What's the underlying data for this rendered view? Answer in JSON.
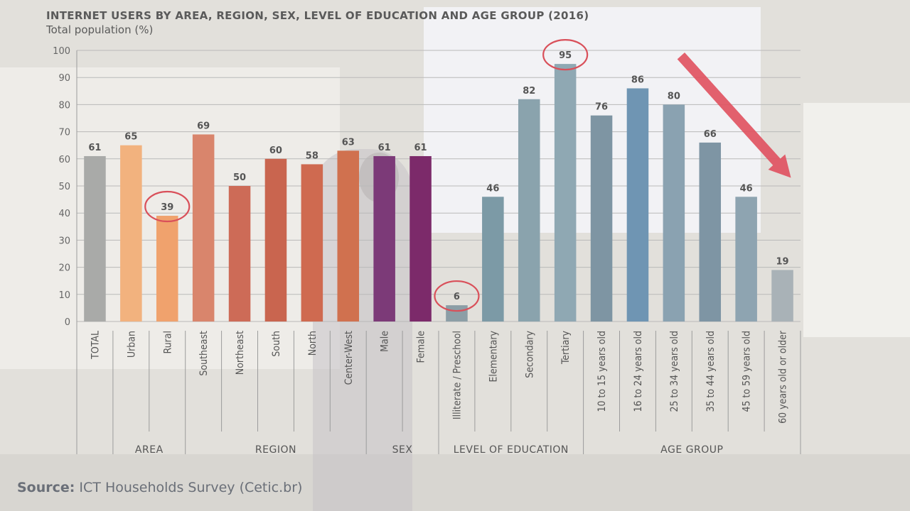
{
  "chart_data": {
    "type": "bar",
    "title": "INTERNET USERS BY AREA, REGION, SEX, LEVEL OF EDUCATION AND AGE GROUP (2016)",
    "subtitle": "Total population (%)",
    "ylim": [
      0,
      100
    ],
    "yticks": [
      0,
      10,
      20,
      30,
      40,
      50,
      60,
      70,
      80,
      90,
      100
    ],
    "grid": true,
    "categories": [
      "TOTAL",
      "Urban",
      "Rural",
      "Southeast",
      "Northeast",
      "South",
      "North",
      "Center-West",
      "Male",
      "Female",
      "Illiterate / Preschool",
      "Elementary",
      "Secondary",
      "Tertiary",
      "10 to 15 years old",
      "16 to 24 years old",
      "25 to 34 years old",
      "35 to 44 years old",
      "45 to 59 years old",
      "60 years old or older"
    ],
    "values": [
      61,
      65,
      39,
      69,
      50,
      60,
      58,
      63,
      61,
      61,
      6,
      46,
      82,
      95,
      76,
      86,
      80,
      66,
      46,
      19
    ],
    "colors": [
      "#a9aaa8",
      "#f2b27e",
      "#f0a26d",
      "#d9856c",
      "#cd6b57",
      "#c9654f",
      "#cf6a50",
      "#d0714f",
      "#7c3a78",
      "#7c2a6a",
      "#8c9ea6",
      "#7c9aa6",
      "#8aa3ad",
      "#8fa8b3",
      "#7e95a3",
      "#6f95b3",
      "#8aa2b1",
      "#7e95a4",
      "#8ea4b1",
      "#a9b2b7"
    ],
    "groups": [
      {
        "label": "",
        "categories": [
          "TOTAL"
        ]
      },
      {
        "label": "AREA",
        "categories": [
          "Urban",
          "Rural"
        ]
      },
      {
        "label": "REGION",
        "categories": [
          "Southeast",
          "Northeast",
          "South",
          "North",
          "Center-West"
        ]
      },
      {
        "label": "SEX",
        "categories": [
          "Male",
          "Female"
        ]
      },
      {
        "label": "LEVEL OF EDUCATION",
        "categories": [
          "Illiterate / Preschool",
          "Elementary",
          "Secondary",
          "Tertiary"
        ]
      },
      {
        "label": "AGE GROUP",
        "categories": [
          "10 to 15 years old",
          "16 to 24 years old",
          "25 to 34 years old",
          "35 to 44 years old",
          "45 to 59 years old",
          "60 years old or older"
        ]
      }
    ],
    "highlighted": [
      "Rural",
      "Illiterate / Preschool",
      "Tertiary"
    ],
    "highlight_color": "#d9505a",
    "trend_arrow_color": "#e0505e"
  },
  "source": {
    "label": "Source:",
    "text": " ICT Households Survey (Cetic.br)"
  }
}
